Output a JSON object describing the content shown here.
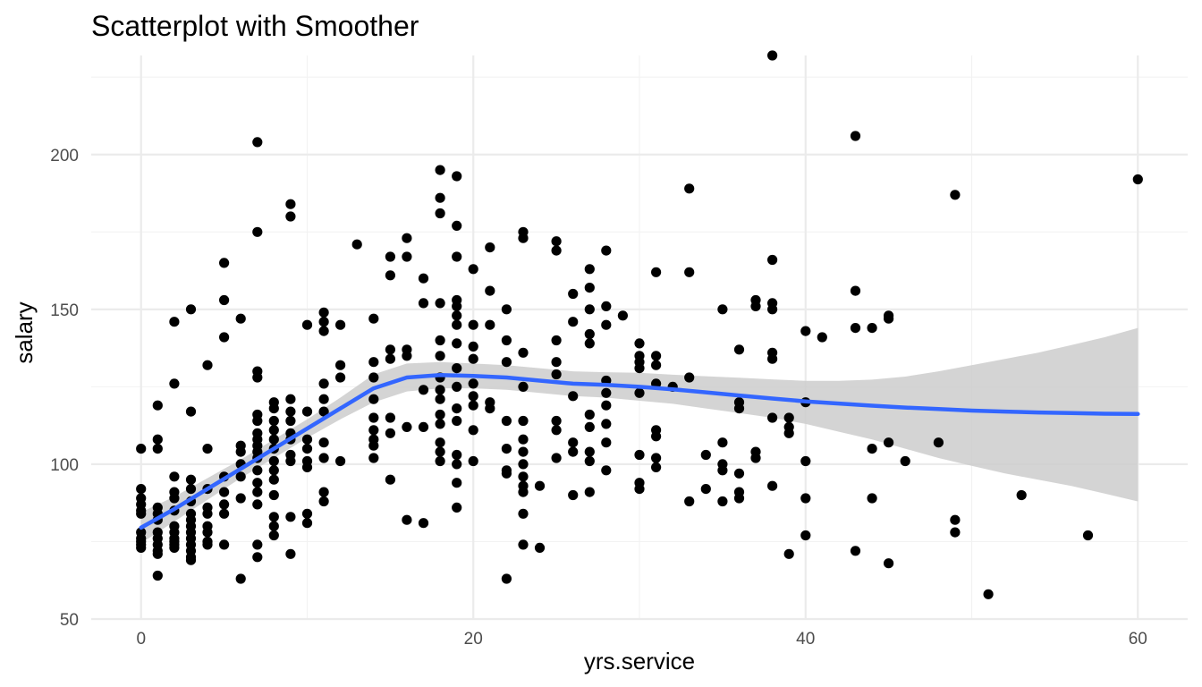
{
  "chart_data": {
    "type": "scatter",
    "title": "Scatterplot with Smoother",
    "xlabel": "yrs.service",
    "ylabel": "salary",
    "xlim": [
      -3,
      63
    ],
    "ylim": [
      50,
      232
    ],
    "x_ticks": [
      0,
      20,
      40,
      60
    ],
    "y_ticks": [
      50,
      100,
      150,
      200
    ],
    "x_tick_labels": [
      "0",
      "20",
      "40",
      "60"
    ],
    "y_tick_labels": [
      "50",
      "100",
      "150",
      "200"
    ],
    "grid": true,
    "legend": "none",
    "colors": {
      "points": "#000000",
      "smoother": "#3366ff",
      "band": "#cccccc",
      "grid": "#ebebeb"
    },
    "points": [
      [
        0,
        105
      ],
      [
        0,
        92
      ],
      [
        0,
        89
      ],
      [
        0,
        87
      ],
      [
        0,
        85
      ],
      [
        0,
        84
      ],
      [
        0,
        78
      ],
      [
        0,
        76
      ],
      [
        0,
        75
      ],
      [
        0,
        74
      ],
      [
        0,
        73
      ],
      [
        1,
        119
      ],
      [
        1,
        108
      ],
      [
        1,
        105
      ],
      [
        1,
        86
      ],
      [
        1,
        84
      ],
      [
        1,
        82
      ],
      [
        1,
        78
      ],
      [
        1,
        76
      ],
      [
        1,
        74
      ],
      [
        1,
        72
      ],
      [
        1,
        71
      ],
      [
        1,
        64
      ],
      [
        2,
        146
      ],
      [
        2,
        126
      ],
      [
        2,
        96
      ],
      [
        2,
        91
      ],
      [
        2,
        89
      ],
      [
        2,
        85
      ],
      [
        2,
        80
      ],
      [
        2,
        78
      ],
      [
        2,
        76
      ],
      [
        2,
        75
      ],
      [
        2,
        74
      ],
      [
        2,
        73
      ],
      [
        3,
        150
      ],
      [
        3,
        117
      ],
      [
        3,
        95
      ],
      [
        3,
        92
      ],
      [
        3,
        88
      ],
      [
        3,
        84
      ],
      [
        3,
        82
      ],
      [
        3,
        80
      ],
      [
        3,
        78
      ],
      [
        3,
        76
      ],
      [
        3,
        74
      ],
      [
        3,
        72
      ],
      [
        3,
        70
      ],
      [
        3,
        69
      ],
      [
        4,
        132
      ],
      [
        4,
        105
      ],
      [
        4,
        92
      ],
      [
        4,
        86
      ],
      [
        4,
        84
      ],
      [
        4,
        80
      ],
      [
        4,
        78
      ],
      [
        4,
        75
      ],
      [
        4,
        74
      ],
      [
        5,
        165
      ],
      [
        5,
        153
      ],
      [
        5,
        141
      ],
      [
        5,
        96
      ],
      [
        5,
        91
      ],
      [
        5,
        87
      ],
      [
        5,
        84
      ],
      [
        5,
        74
      ],
      [
        6,
        147
      ],
      [
        6,
        106
      ],
      [
        6,
        104
      ],
      [
        6,
        100
      ],
      [
        6,
        96
      ],
      [
        6,
        89
      ],
      [
        6,
        63
      ],
      [
        7,
        204
      ],
      [
        7,
        175
      ],
      [
        7,
        130
      ],
      [
        7,
        128
      ],
      [
        7,
        116
      ],
      [
        7,
        114
      ],
      [
        7,
        110
      ],
      [
        7,
        108
      ],
      [
        7,
        106
      ],
      [
        7,
        104
      ],
      [
        7,
        102
      ],
      [
        7,
        98
      ],
      [
        7,
        94
      ],
      [
        7,
        91
      ],
      [
        7,
        87
      ],
      [
        7,
        74
      ],
      [
        7,
        70
      ],
      [
        8,
        120
      ],
      [
        8,
        118
      ],
      [
        8,
        114
      ],
      [
        8,
        111
      ],
      [
        8,
        108
      ],
      [
        8,
        105
      ],
      [
        8,
        101
      ],
      [
        8,
        98
      ],
      [
        8,
        95
      ],
      [
        8,
        90
      ],
      [
        8,
        83
      ],
      [
        8,
        80
      ],
      [
        8,
        77
      ],
      [
        9,
        184
      ],
      [
        9,
        180
      ],
      [
        9,
        121
      ],
      [
        9,
        117
      ],
      [
        9,
        114
      ],
      [
        9,
        110
      ],
      [
        9,
        108
      ],
      [
        9,
        103
      ],
      [
        9,
        101
      ],
      [
        9,
        83
      ],
      [
        9,
        71
      ],
      [
        10,
        145
      ],
      [
        10,
        117
      ],
      [
        10,
        108
      ],
      [
        10,
        105
      ],
      [
        10,
        101
      ],
      [
        10,
        99
      ],
      [
        10,
        84
      ],
      [
        10,
        81
      ],
      [
        11,
        149
      ],
      [
        11,
        146
      ],
      [
        11,
        143
      ],
      [
        11,
        126
      ],
      [
        11,
        121
      ],
      [
        11,
        117
      ],
      [
        11,
        107
      ],
      [
        11,
        102
      ],
      [
        11,
        91
      ],
      [
        11,
        88
      ],
      [
        12,
        145
      ],
      [
        12,
        132
      ],
      [
        12,
        128
      ],
      [
        12,
        101
      ],
      [
        13,
        171
      ],
      [
        14,
        147
      ],
      [
        14,
        133
      ],
      [
        14,
        128
      ],
      [
        14,
        121
      ],
      [
        14,
        115
      ],
      [
        14,
        111
      ],
      [
        14,
        108
      ],
      [
        14,
        106
      ],
      [
        14,
        102
      ],
      [
        15,
        167
      ],
      [
        15,
        161
      ],
      [
        15,
        137
      ],
      [
        15,
        134
      ],
      [
        15,
        115
      ],
      [
        15,
        110
      ],
      [
        15,
        95
      ],
      [
        16,
        173
      ],
      [
        16,
        167
      ],
      [
        16,
        137
      ],
      [
        16,
        135
      ],
      [
        16,
        112
      ],
      [
        16,
        82
      ],
      [
        17,
        160
      ],
      [
        17,
        152
      ],
      [
        17,
        124
      ],
      [
        17,
        112
      ],
      [
        17,
        81
      ],
      [
        18,
        195
      ],
      [
        18,
        186
      ],
      [
        18,
        181
      ],
      [
        18,
        152
      ],
      [
        18,
        140
      ],
      [
        18,
        135
      ],
      [
        18,
        128
      ],
      [
        18,
        124
      ],
      [
        18,
        121
      ],
      [
        18,
        116
      ],
      [
        18,
        113
      ],
      [
        18,
        107
      ],
      [
        18,
        104
      ],
      [
        18,
        101
      ],
      [
        19,
        193
      ],
      [
        19,
        177
      ],
      [
        19,
        167
      ],
      [
        19,
        153
      ],
      [
        19,
        151
      ],
      [
        19,
        148
      ],
      [
        19,
        145
      ],
      [
        19,
        139
      ],
      [
        19,
        131
      ],
      [
        19,
        125
      ],
      [
        19,
        118
      ],
      [
        19,
        114
      ],
      [
        19,
        103
      ],
      [
        19,
        100
      ],
      [
        19,
        94
      ],
      [
        19,
        86
      ],
      [
        20,
        163
      ],
      [
        20,
        145
      ],
      [
        20,
        138
      ],
      [
        20,
        134
      ],
      [
        20,
        126
      ],
      [
        20,
        122
      ],
      [
        20,
        119
      ],
      [
        20,
        111
      ],
      [
        20,
        101
      ],
      [
        21,
        170
      ],
      [
        21,
        156
      ],
      [
        21,
        145
      ],
      [
        21,
        120
      ],
      [
        21,
        118
      ],
      [
        22,
        150
      ],
      [
        22,
        140
      ],
      [
        22,
        133
      ],
      [
        22,
        114
      ],
      [
        22,
        105
      ],
      [
        22,
        98
      ],
      [
        22,
        97
      ],
      [
        22,
        63
      ],
      [
        23,
        175
      ],
      [
        23,
        173
      ],
      [
        23,
        136
      ],
      [
        23,
        125
      ],
      [
        23,
        114
      ],
      [
        23,
        108
      ],
      [
        23,
        104
      ],
      [
        23,
        100
      ],
      [
        23,
        96
      ],
      [
        23,
        93
      ],
      [
        23,
        91
      ],
      [
        23,
        84
      ],
      [
        23,
        74
      ],
      [
        24,
        93
      ],
      [
        24,
        73
      ],
      [
        25,
        172
      ],
      [
        25,
        169
      ],
      [
        25,
        140
      ],
      [
        25,
        133
      ],
      [
        25,
        129
      ],
      [
        25,
        114
      ],
      [
        25,
        111
      ],
      [
        25,
        102
      ],
      [
        26,
        155
      ],
      [
        26,
        146
      ],
      [
        26,
        122
      ],
      [
        26,
        107
      ],
      [
        26,
        104
      ],
      [
        26,
        90
      ],
      [
        27,
        163
      ],
      [
        27,
        157
      ],
      [
        27,
        150
      ],
      [
        27,
        142
      ],
      [
        27,
        139
      ],
      [
        27,
        116
      ],
      [
        27,
        112
      ],
      [
        27,
        104
      ],
      [
        27,
        101
      ],
      [
        27,
        91
      ],
      [
        28,
        169
      ],
      [
        28,
        151
      ],
      [
        28,
        145
      ],
      [
        28,
        127
      ],
      [
        28,
        123
      ],
      [
        28,
        119
      ],
      [
        28,
        113
      ],
      [
        28,
        107
      ],
      [
        28,
        98
      ],
      [
        29,
        148
      ],
      [
        30,
        139
      ],
      [
        30,
        135
      ],
      [
        30,
        133
      ],
      [
        30,
        131
      ],
      [
        30,
        123
      ],
      [
        30,
        103
      ],
      [
        30,
        94
      ],
      [
        30,
        92
      ],
      [
        31,
        162
      ],
      [
        31,
        135
      ],
      [
        31,
        132
      ],
      [
        31,
        126
      ],
      [
        31,
        111
      ],
      [
        31,
        109
      ],
      [
        31,
        102
      ],
      [
        31,
        99
      ],
      [
        32,
        125
      ],
      [
        33,
        189
      ],
      [
        33,
        162
      ],
      [
        33,
        128
      ],
      [
        33,
        88
      ],
      [
        34,
        103
      ],
      [
        34,
        92
      ],
      [
        35,
        150
      ],
      [
        35,
        107
      ],
      [
        35,
        100
      ],
      [
        35,
        98
      ],
      [
        35,
        88
      ],
      [
        36,
        137
      ],
      [
        36,
        120
      ],
      [
        36,
        118
      ],
      [
        36,
        97
      ],
      [
        36,
        91
      ],
      [
        36,
        89
      ],
      [
        37,
        153
      ],
      [
        37,
        151
      ],
      [
        37,
        104
      ],
      [
        37,
        102
      ],
      [
        38,
        232
      ],
      [
        38,
        166
      ],
      [
        38,
        152
      ],
      [
        38,
        150
      ],
      [
        38,
        136
      ],
      [
        38,
        134
      ],
      [
        38,
        115
      ],
      [
        38,
        93
      ],
      [
        39,
        115
      ],
      [
        39,
        112
      ],
      [
        39,
        110
      ],
      [
        39,
        71
      ],
      [
        40,
        143
      ],
      [
        40,
        120
      ],
      [
        40,
        101
      ],
      [
        40,
        89
      ],
      [
        40,
        77
      ],
      [
        41,
        141
      ],
      [
        43,
        206
      ],
      [
        43,
        156
      ],
      [
        43,
        144
      ],
      [
        43,
        72
      ],
      [
        44,
        144
      ],
      [
        44,
        105
      ],
      [
        44,
        89
      ],
      [
        45,
        148
      ],
      [
        45,
        147
      ],
      [
        45,
        107
      ],
      [
        45,
        68
      ],
      [
        46,
        101
      ],
      [
        48,
        107
      ],
      [
        49,
        187
      ],
      [
        49,
        82
      ],
      [
        49,
        78
      ],
      [
        51,
        58
      ],
      [
        53,
        90
      ],
      [
        57,
        77
      ],
      [
        60,
        192
      ]
    ],
    "smoother": {
      "method": "loess",
      "x": [
        0,
        2,
        4,
        6,
        8,
        10,
        12,
        14,
        16,
        18,
        20,
        22,
        24,
        26,
        28,
        30,
        32,
        34,
        36,
        38,
        40,
        42,
        44,
        46,
        48,
        50,
        52,
        54,
        56,
        58,
        60
      ],
      "fit": [
        79.5,
        85.5,
        92,
        98.5,
        105,
        111.5,
        118,
        124.5,
        128,
        128.8,
        128.5,
        128,
        127,
        126,
        125.6,
        125,
        124.2,
        123.2,
        122.2,
        121.2,
        120.3,
        119.6,
        118.9,
        118.3,
        117.8,
        117.3,
        117,
        116.7,
        116.5,
        116.3,
        116.2
      ],
      "lower": [
        74.5,
        81.5,
        88.5,
        95.5,
        102,
        108.5,
        114.5,
        120,
        123.5,
        124.5,
        124.5,
        124,
        123,
        122,
        121.5,
        120.5,
        119.5,
        118,
        116.5,
        115,
        113,
        110.5,
        108,
        105,
        102,
        99.5,
        97,
        95,
        93,
        90.5,
        88
      ],
      "upper": [
        84.5,
        89.5,
        95.5,
        101.5,
        108,
        114.5,
        121.5,
        129,
        132.5,
        133,
        132.5,
        132,
        131,
        130,
        129.7,
        129.5,
        128.9,
        128.4,
        127.9,
        127.4,
        126.9,
        126.9,
        127.3,
        128.3,
        130,
        132,
        134,
        136,
        138.5,
        141,
        144
      ]
    }
  }
}
